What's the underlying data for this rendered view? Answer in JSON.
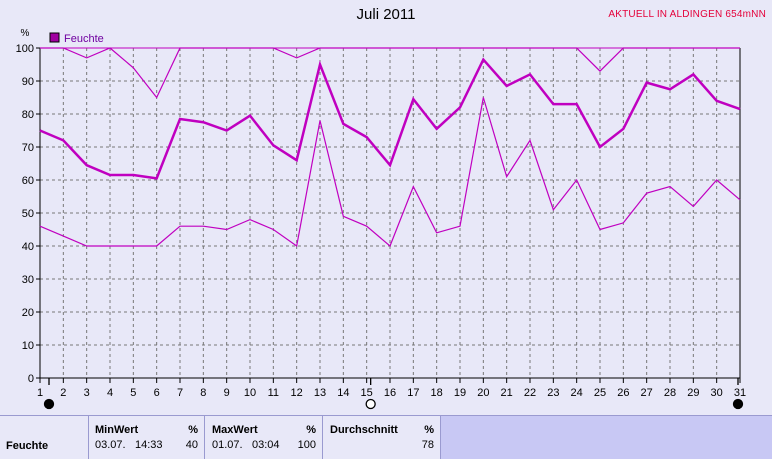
{
  "header": {
    "title": "Juli 2011",
    "station": "AKTUELL IN ALDINGEN 654mNN"
  },
  "chart_data": {
    "type": "line",
    "title": "Juli 2011",
    "ylabel": "%",
    "ylim": [
      0,
      100
    ],
    "yticks": [
      0,
      10,
      20,
      30,
      40,
      50,
      60,
      70,
      80,
      90,
      100
    ],
    "x": [
      1,
      2,
      3,
      4,
      5,
      6,
      7,
      8,
      9,
      10,
      11,
      12,
      13,
      14,
      15,
      16,
      17,
      18,
      19,
      20,
      21,
      22,
      23,
      24,
      25,
      26,
      27,
      28,
      29,
      30,
      31
    ],
    "grid": true,
    "legend": "top-left",
    "legend_label": "Feuchte",
    "color": "#c000c0",
    "series": [
      {
        "role": "max",
        "values": [
          100,
          100,
          97,
          100,
          94,
          85,
          100,
          100,
          100,
          100,
          100,
          97,
          100,
          100,
          100,
          100,
          100,
          100,
          100,
          100,
          100,
          100,
          100,
          100,
          93,
          100,
          100,
          100,
          100,
          100,
          100
        ]
      },
      {
        "role": "avg",
        "values": [
          75,
          72,
          64.5,
          61.5,
          61.5,
          60.5,
          78.5,
          77.5,
          75,
          79.5,
          70.5,
          66,
          95,
          77,
          73,
          64.5,
          84.5,
          75.5,
          82,
          96.5,
          88.5,
          92,
          83,
          83,
          70,
          75.5,
          89.5,
          87.5,
          92,
          84,
          81.5
        ]
      },
      {
        "role": "min",
        "values": [
          46,
          43,
          40,
          40,
          40,
          40,
          46,
          46,
          45,
          48,
          45,
          40,
          78,
          49,
          46,
          40,
          58,
          44,
          46,
          85,
          61,
          72,
          51,
          60,
          45,
          47,
          56,
          58,
          52,
          60,
          54
        ]
      }
    ],
    "moon_markers": [
      {
        "day": 1,
        "phase": "new"
      },
      {
        "day": 15,
        "phase": "full"
      },
      {
        "day": 31,
        "phase": "new"
      }
    ]
  },
  "stats": {
    "row_label": "Feuchte",
    "min": {
      "header": "MinWert",
      "unit": "%",
      "date": "03.07.",
      "time": "14:33",
      "value": "40"
    },
    "max": {
      "header": "MaxWert",
      "unit": "%",
      "date": "01.07.",
      "time": "03:04",
      "value": "100"
    },
    "avg": {
      "header": "Durchschnitt",
      "unit": "%",
      "value": "78"
    }
  }
}
